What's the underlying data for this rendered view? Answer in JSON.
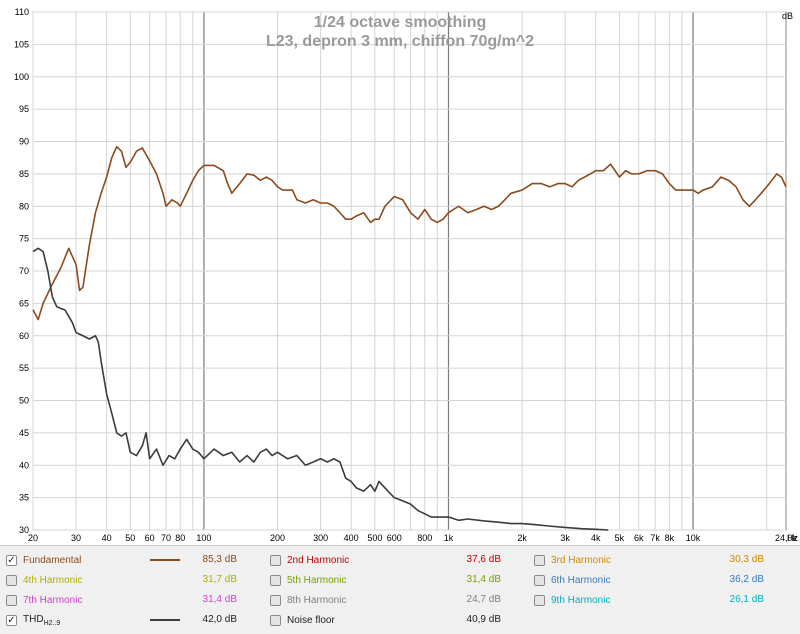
{
  "chart_data": {
    "type": "line",
    "title": "1/24 octave smoothing",
    "subtitle": "L23, depron 3 mm, chiffon 70g/m^2",
    "x_scale": "log",
    "xlim": [
      20,
      24000
    ],
    "ylim": [
      30,
      110
    ],
    "y_unit_label": "dB",
    "x_unit_label": "Hz",
    "grid": true,
    "x_ticks": [
      {
        "v": 20,
        "label": "20"
      },
      {
        "v": 30,
        "label": "30"
      },
      {
        "v": 40,
        "label": "40"
      },
      {
        "v": 50,
        "label": "50"
      },
      {
        "v": 60,
        "label": "60"
      },
      {
        "v": 70,
        "label": "70"
      },
      {
        "v": 80,
        "label": "80"
      },
      {
        "v": 100,
        "label": "100"
      },
      {
        "v": 200,
        "label": "200"
      },
      {
        "v": 300,
        "label": "300"
      },
      {
        "v": 400,
        "label": "400"
      },
      {
        "v": 500,
        "label": "500"
      },
      {
        "v": 600,
        "label": "600"
      },
      {
        "v": 800,
        "label": "800"
      },
      {
        "v": 1000,
        "label": "1k"
      },
      {
        "v": 2000,
        "label": "2k"
      },
      {
        "v": 3000,
        "label": "3k"
      },
      {
        "v": 4000,
        "label": "4k"
      },
      {
        "v": 5000,
        "label": "5k"
      },
      {
        "v": 6000,
        "label": "6k"
      },
      {
        "v": 7000,
        "label": "7k"
      },
      {
        "v": 8000,
        "label": "8k"
      },
      {
        "v": 10000,
        "label": "10k"
      },
      {
        "v": 24000,
        "label": "24,0k"
      }
    ],
    "y_ticks": [
      30,
      35,
      40,
      45,
      50,
      55,
      60,
      65,
      70,
      75,
      80,
      85,
      90,
      95,
      100,
      105,
      110
    ],
    "series": [
      {
        "name": "Fundamental",
        "color": "#8c4a1e",
        "points": [
          [
            20,
            64
          ],
          [
            21,
            62.5
          ],
          [
            22,
            65
          ],
          [
            24,
            68
          ],
          [
            26,
            70.5
          ],
          [
            28,
            73.5
          ],
          [
            30,
            71
          ],
          [
            31,
            67
          ],
          [
            32,
            67.5
          ],
          [
            34,
            74
          ],
          [
            36,
            79
          ],
          [
            38,
            82
          ],
          [
            40,
            84.5
          ],
          [
            42,
            87.5
          ],
          [
            44,
            89.2
          ],
          [
            46,
            88.5
          ],
          [
            48,
            86
          ],
          [
            50,
            86.8
          ],
          [
            53,
            88.5
          ],
          [
            56,
            89
          ],
          [
            60,
            87
          ],
          [
            64,
            85
          ],
          [
            68,
            82
          ],
          [
            70,
            80
          ],
          [
            74,
            81
          ],
          [
            78,
            80.5
          ],
          [
            80,
            80
          ],
          [
            85,
            82
          ],
          [
            90,
            84
          ],
          [
            95,
            85.5
          ],
          [
            100,
            86.3
          ],
          [
            110,
            86.3
          ],
          [
            120,
            85.5
          ],
          [
            125,
            83.5
          ],
          [
            130,
            82
          ],
          [
            140,
            83.5
          ],
          [
            150,
            85
          ],
          [
            160,
            84.8
          ],
          [
            170,
            84
          ],
          [
            180,
            84.5
          ],
          [
            190,
            84
          ],
          [
            200,
            83
          ],
          [
            210,
            82.5
          ],
          [
            230,
            82.5
          ],
          [
            240,
            81
          ],
          [
            260,
            80.5
          ],
          [
            280,
            81
          ],
          [
            300,
            80.5
          ],
          [
            320,
            80.5
          ],
          [
            340,
            80
          ],
          [
            360,
            79
          ],
          [
            380,
            78
          ],
          [
            400,
            78
          ],
          [
            420,
            78.5
          ],
          [
            450,
            79
          ],
          [
            480,
            77.5
          ],
          [
            500,
            78
          ],
          [
            520,
            78
          ],
          [
            550,
            80
          ],
          [
            600,
            81.5
          ],
          [
            650,
            81
          ],
          [
            700,
            79
          ],
          [
            750,
            78
          ],
          [
            800,
            79.5
          ],
          [
            850,
            78
          ],
          [
            900,
            77.5
          ],
          [
            950,
            78
          ],
          [
            1000,
            79
          ],
          [
            1100,
            80
          ],
          [
            1200,
            79
          ],
          [
            1300,
            79.5
          ],
          [
            1400,
            80
          ],
          [
            1500,
            79.5
          ],
          [
            1600,
            80
          ],
          [
            1700,
            81
          ],
          [
            1800,
            82
          ],
          [
            2000,
            82.5
          ],
          [
            2200,
            83.5
          ],
          [
            2400,
            83.5
          ],
          [
            2600,
            83
          ],
          [
            2800,
            83.5
          ],
          [
            3000,
            83.5
          ],
          [
            3200,
            83
          ],
          [
            3400,
            84
          ],
          [
            3600,
            84.5
          ],
          [
            3800,
            85
          ],
          [
            4000,
            85.5
          ],
          [
            4300,
            85.5
          ],
          [
            4600,
            86.5
          ],
          [
            4800,
            85.5
          ],
          [
            5000,
            84.5
          ],
          [
            5300,
            85.5
          ],
          [
            5600,
            85
          ],
          [
            6000,
            85
          ],
          [
            6500,
            85.5
          ],
          [
            7000,
            85.5
          ],
          [
            7500,
            85
          ],
          [
            8000,
            83.5
          ],
          [
            8500,
            82.5
          ],
          [
            9000,
            82.5
          ],
          [
            10000,
            82.5
          ],
          [
            10500,
            82
          ],
          [
            11000,
            82.5
          ],
          [
            12000,
            83
          ],
          [
            13000,
            84.5
          ],
          [
            14000,
            84
          ],
          [
            15000,
            83
          ],
          [
            16000,
            81
          ],
          [
            17000,
            80
          ],
          [
            18000,
            81
          ],
          [
            19000,
            82
          ],
          [
            20000,
            83
          ],
          [
            21000,
            84
          ],
          [
            22000,
            85
          ],
          [
            23000,
            84.5
          ],
          [
            24000,
            83
          ]
        ]
      },
      {
        "name": "THD",
        "color": "#3c3c3c",
        "points": [
          [
            20,
            73
          ],
          [
            21,
            73.5
          ],
          [
            22,
            73
          ],
          [
            23,
            70
          ],
          [
            24,
            66
          ],
          [
            25,
            64.5
          ],
          [
            26,
            64.2
          ],
          [
            27,
            64
          ],
          [
            28,
            63
          ],
          [
            29,
            62
          ],
          [
            30,
            60.5
          ],
          [
            32,
            60
          ],
          [
            34,
            59.5
          ],
          [
            36,
            60
          ],
          [
            37,
            59
          ],
          [
            38,
            56
          ],
          [
            40,
            51
          ],
          [
            42,
            48
          ],
          [
            44,
            45
          ],
          [
            46,
            44.5
          ],
          [
            48,
            45
          ],
          [
            50,
            42
          ],
          [
            53,
            41.5
          ],
          [
            56,
            43
          ],
          [
            58,
            45
          ],
          [
            60,
            41
          ],
          [
            64,
            42.5
          ],
          [
            68,
            40
          ],
          [
            72,
            41.5
          ],
          [
            76,
            41
          ],
          [
            80,
            42.5
          ],
          [
            85,
            44
          ],
          [
            90,
            42.5
          ],
          [
            95,
            42
          ],
          [
            100,
            41
          ],
          [
            110,
            42.5
          ],
          [
            120,
            41.5
          ],
          [
            130,
            42
          ],
          [
            140,
            40.5
          ],
          [
            150,
            41.5
          ],
          [
            160,
            40.5
          ],
          [
            170,
            42
          ],
          [
            180,
            42.5
          ],
          [
            190,
            41.5
          ],
          [
            200,
            42
          ],
          [
            220,
            41
          ],
          [
            240,
            41.5
          ],
          [
            260,
            40
          ],
          [
            280,
            40.5
          ],
          [
            300,
            41
          ],
          [
            320,
            40.5
          ],
          [
            340,
            41
          ],
          [
            360,
            40.5
          ],
          [
            380,
            38
          ],
          [
            400,
            37.5
          ],
          [
            420,
            36.5
          ],
          [
            450,
            36
          ],
          [
            480,
            37
          ],
          [
            500,
            36
          ],
          [
            520,
            37.5
          ],
          [
            550,
            36.5
          ],
          [
            600,
            35
          ],
          [
            650,
            34.5
          ],
          [
            700,
            34
          ],
          [
            750,
            33
          ],
          [
            800,
            32.5
          ],
          [
            850,
            32
          ],
          [
            900,
            32
          ],
          [
            1000,
            32
          ],
          [
            1100,
            31.5
          ],
          [
            1200,
            31.7
          ],
          [
            1400,
            31.4
          ],
          [
            1600,
            31.2
          ],
          [
            1800,
            31
          ],
          [
            2000,
            31
          ],
          [
            2300,
            30.8
          ],
          [
            2600,
            30.6
          ],
          [
            3000,
            30.4
          ],
          [
            3500,
            30.2
          ],
          [
            4000,
            30.1
          ],
          [
            4500,
            30
          ]
        ]
      }
    ],
    "legend": [
      {
        "label": "Fundamental",
        "value": "85,3 dB",
        "checked": true,
        "color": "#8c4a1e",
        "line": true
      },
      {
        "label": "2nd Harmonic",
        "value": "37,6 dB",
        "checked": false,
        "color": "#c00000",
        "line": false
      },
      {
        "label": "3rd Harmonic",
        "value": "30,3 dB",
        "checked": false,
        "color": "#d08a00",
        "line": false
      },
      {
        "label": "4th Harmonic",
        "value": "31,7 dB",
        "checked": false,
        "color": "#b0b000",
        "line": false
      },
      {
        "label": "5th Harmonic",
        "value": "31,4 dB",
        "checked": false,
        "color": "#7aa000",
        "line": false
      },
      {
        "label": "6th Harmonic",
        "value": "36,2 dB",
        "checked": false,
        "color": "#3a7ac0",
        "line": false
      },
      {
        "label": "7th Harmonic",
        "value": "31,4 dB",
        "checked": false,
        "color": "#d040d0",
        "line": false
      },
      {
        "label": "8th Harmonic",
        "value": "24,7 dB",
        "checked": false,
        "color": "#808080",
        "line": false
      },
      {
        "label": "9th Harmonic",
        "value": "26,1 dB",
        "checked": false,
        "color": "#00b0c0",
        "line": false
      },
      {
        "label": "THD",
        "sub": "H2..9",
        "value": "42,0 dB",
        "checked": true,
        "color": "#3c3c3c",
        "line": true
      },
      {
        "label": "Noise floor",
        "value": "40,9 dB",
        "checked": false,
        "color": "#000000",
        "line": false
      }
    ]
  }
}
